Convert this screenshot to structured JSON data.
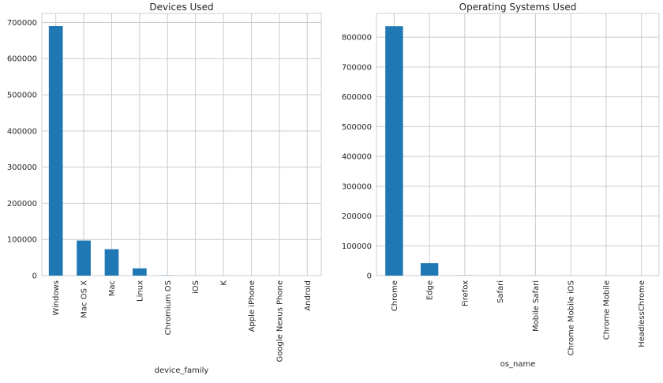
{
  "chart_data": [
    {
      "type": "bar",
      "title": "Devices Used",
      "xlabel": "device_family",
      "ylabel": "",
      "categories": [
        "Windows",
        "Mac OS X",
        "Mac",
        "Linux",
        "Chromium OS",
        "iOS",
        "K",
        "Apple iPhone",
        "Google Nexus Phone",
        "Android"
      ],
      "values": [
        690000,
        97000,
        73000,
        20000,
        500,
        200,
        100,
        50,
        20,
        10
      ],
      "ylim": [
        0,
        725000
      ],
      "yticks": [
        0,
        100000,
        200000,
        300000,
        400000,
        500000,
        600000,
        700000
      ],
      "grid": true,
      "bar_color": "#1f77b4"
    },
    {
      "type": "bar",
      "title": "Operating Systems Used",
      "xlabel": "os_name",
      "ylabel": "",
      "categories": [
        "Chrome",
        "Edge",
        "Firefox",
        "Safari",
        "Mobile Safari",
        "Chrome Mobile iOS",
        "Chrome Mobile",
        "HeadlessChrome"
      ],
      "values": [
        837000,
        42000,
        500,
        300,
        200,
        100,
        50,
        20
      ],
      "ylim": [
        0,
        880000
      ],
      "yticks": [
        0,
        100000,
        200000,
        300000,
        400000,
        500000,
        600000,
        700000,
        800000
      ],
      "grid": true,
      "bar_color": "#1f77b4"
    }
  ]
}
